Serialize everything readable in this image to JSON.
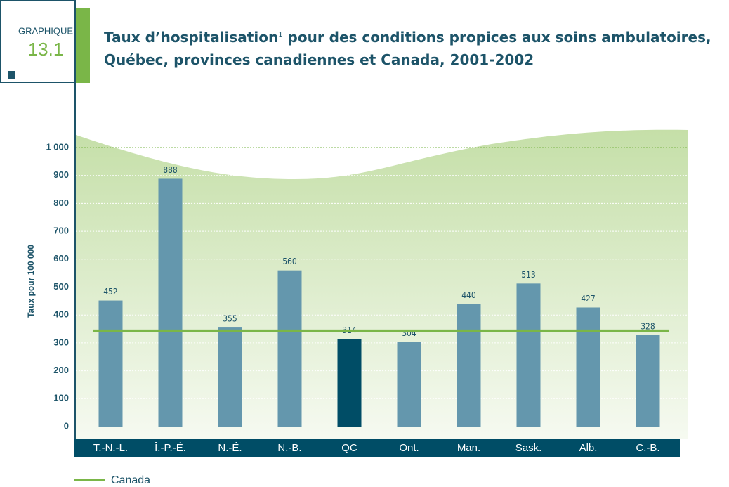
{
  "badge": {
    "label": "GRAPHIQUE",
    "number": "13.1"
  },
  "chart_data": {
    "type": "bar",
    "title": {
      "before": "Taux d’hospitalisation",
      "footnote": "1",
      "after": " pour des conditions propices aux soins ambulatoires, Québec, provinces canadiennes et Canada, 2001-2002"
    },
    "y_label": "Taux pour 100 000",
    "categories": [
      "T.-N.-L.",
      "Î.-P.-É.",
      "N.-É.",
      "N.-B.",
      "QC",
      "Ont.",
      "Man.",
      "Sask.",
      "Alb.",
      "C.-B."
    ],
    "values": [
      452,
      888,
      355,
      560,
      314,
      304,
      440,
      513,
      427,
      328
    ],
    "colors": [
      "#6497ad",
      "#6497ad",
      "#6497ad",
      "#6497ad",
      "#004d66",
      "#6497ad",
      "#6497ad",
      "#6497ad",
      "#6497ad",
      "#6497ad"
    ],
    "reference_line": {
      "name": "Canada",
      "value": 343,
      "color": "#7ab648"
    },
    "ylim": [
      0,
      1000
    ],
    "yticks": [
      0,
      100,
      200,
      300,
      400,
      500,
      600,
      700,
      800,
      900,
      {
        "value": 1000,
        "label": "1 000"
      }
    ],
    "grid": true
  }
}
